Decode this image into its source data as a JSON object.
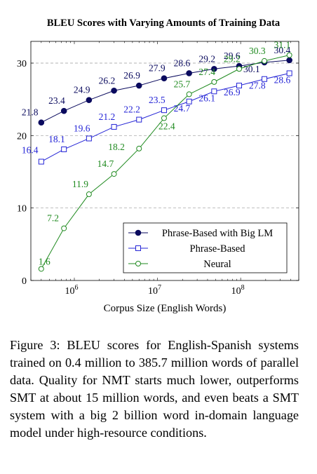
{
  "chart_data": {
    "type": "line",
    "title": "BLEU Scores with Varying Amounts of Training Data",
    "xlabel": "Corpus Size (English Words)",
    "ylabel": "",
    "xscale": "log",
    "xlim": [
      300000,
      500000000
    ],
    "ylim": [
      0,
      33
    ],
    "yticks": [
      0,
      10,
      20,
      30
    ],
    "xticks": [
      {
        "value": 1000000,
        "base": "10",
        "exp": "6"
      },
      {
        "value": 10000000,
        "base": "10",
        "exp": "7"
      },
      {
        "value": 100000000,
        "base": "10",
        "exp": "8"
      }
    ],
    "grid": "horizontal-dashed",
    "legend_position": "bottom-right",
    "series": [
      {
        "name": "Phrase-Based with Big LM",
        "color": "#0a0a5e",
        "marker": "filled-circle",
        "x": [
          400000,
          750000,
          1500000,
          3000000,
          6000000,
          12000000,
          24000000,
          48000000,
          96000000,
          193000000,
          385700000
        ],
        "values": [
          21.8,
          23.4,
          24.9,
          26.2,
          26.9,
          27.9,
          28.6,
          29.2,
          29.6,
          30.1,
          30.4
        ],
        "labels": [
          "21.8",
          "23.4",
          "24.9",
          "26.2",
          "26.9",
          "27.9",
          "28.6",
          "29.2",
          "29.6",
          "30.1",
          "30.4"
        ]
      },
      {
        "name": "Phrase-Based",
        "color": "#2424d6",
        "marker": "open-square",
        "x": [
          400000,
          750000,
          1500000,
          3000000,
          6000000,
          12000000,
          24000000,
          48000000,
          96000000,
          193000000,
          385700000
        ],
        "values": [
          16.4,
          18.1,
          19.6,
          21.2,
          22.2,
          23.5,
          24.7,
          26.1,
          26.9,
          27.8,
          28.6
        ],
        "labels": [
          "16.4",
          "18.1",
          "19.6",
          "21.2",
          "22.2",
          "23.5",
          "24.7",
          "26.1",
          "26.9",
          "27.8",
          "28.6"
        ]
      },
      {
        "name": "Neural",
        "color": "#1f8a1f",
        "marker": "open-circle",
        "x": [
          400000,
          750000,
          1500000,
          3000000,
          6000000,
          12000000,
          24000000,
          48000000,
          96000000,
          193000000,
          385700000
        ],
        "values": [
          1.6,
          7.2,
          11.9,
          14.7,
          18.2,
          22.4,
          25.7,
          27.4,
          29.2,
          30.3,
          31.1
        ],
        "labels": [
          "1.6",
          "7.2",
          "11.9",
          "14.7",
          "18.2",
          "22.4",
          "25.7",
          "27.4",
          "29.2",
          "30.3",
          "31.1"
        ]
      }
    ]
  },
  "caption": "Figure 3: BLEU scores for English-Spanish systems trained on 0.4 million to 385.7 million words of parallel data. Quality for NMT starts much lower, outperforms SMT at about 15 million words, and even beats a SMT system with a big 2 billion word in-domain language model under high-resource conditions."
}
